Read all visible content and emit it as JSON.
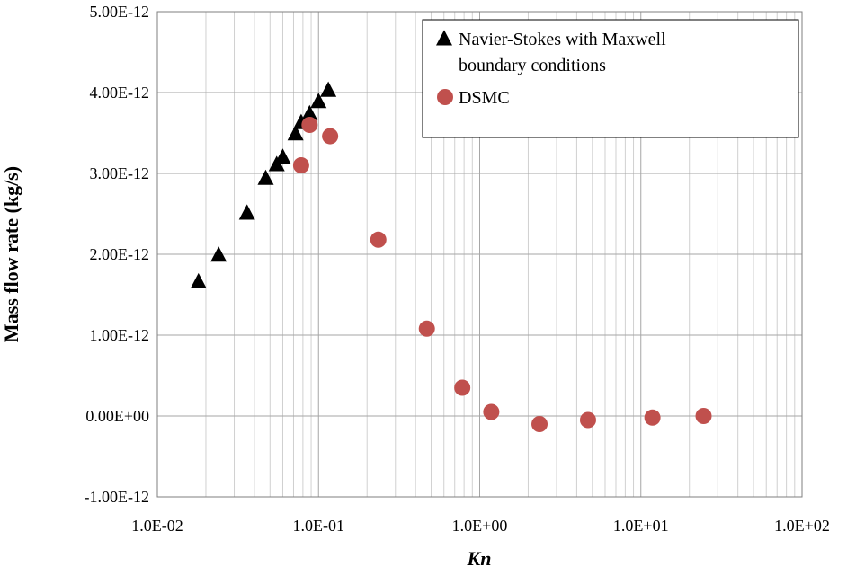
{
  "chart_data": {
    "type": "scatter",
    "xlabel": "Kn",
    "ylabel": "Mass flow rate (kg/s)",
    "x_scale": "log",
    "xlim": [
      0.01,
      100
    ],
    "ylim": [
      -1e-12,
      5e-12
    ],
    "grid": true,
    "legend_position": "top-right",
    "x_tick_labels": [
      "1.0E-02",
      "1.0E-01",
      "1.0E+00",
      "1.0E+01",
      "1.0E+02"
    ],
    "y_tick_labels": [
      "-1.00E-12",
      "0.00E+00",
      "1.00E-12",
      "2.00E-12",
      "3.00E-12",
      "4.00E-12",
      "5.00E-12"
    ],
    "series": [
      {
        "name": "Navier-Stokes with Maxwell boundary conditions",
        "legend_lines": [
          "Navier-Stokes with Maxwell",
          "boundary conditions"
        ],
        "marker": "triangle",
        "color": "#000000",
        "x": [
          0.018,
          0.024,
          0.036,
          0.047,
          0.055,
          0.06,
          0.072,
          0.078,
          0.088,
          0.1,
          0.115
        ],
        "y": [
          1.65e-12,
          1.98e-12,
          2.5e-12,
          2.93e-12,
          3.1e-12,
          3.19e-12,
          3.48e-12,
          3.62e-12,
          3.73e-12,
          3.88e-12,
          4.02e-12
        ]
      },
      {
        "name": "DSMC",
        "legend_lines": [
          "DSMC"
        ],
        "marker": "circle",
        "color": "#C0504D",
        "x": [
          0.078,
          0.088,
          0.118,
          0.235,
          0.47,
          0.78,
          1.18,
          2.35,
          4.7,
          11.8,
          24.5
        ],
        "y": [
          3.1e-12,
          3.6e-12,
          3.46e-12,
          2.18e-12,
          1.08e-12,
          3.5e-13,
          5e-14,
          -1e-13,
          -5e-14,
          -2e-14,
          0.0
        ]
      }
    ]
  }
}
